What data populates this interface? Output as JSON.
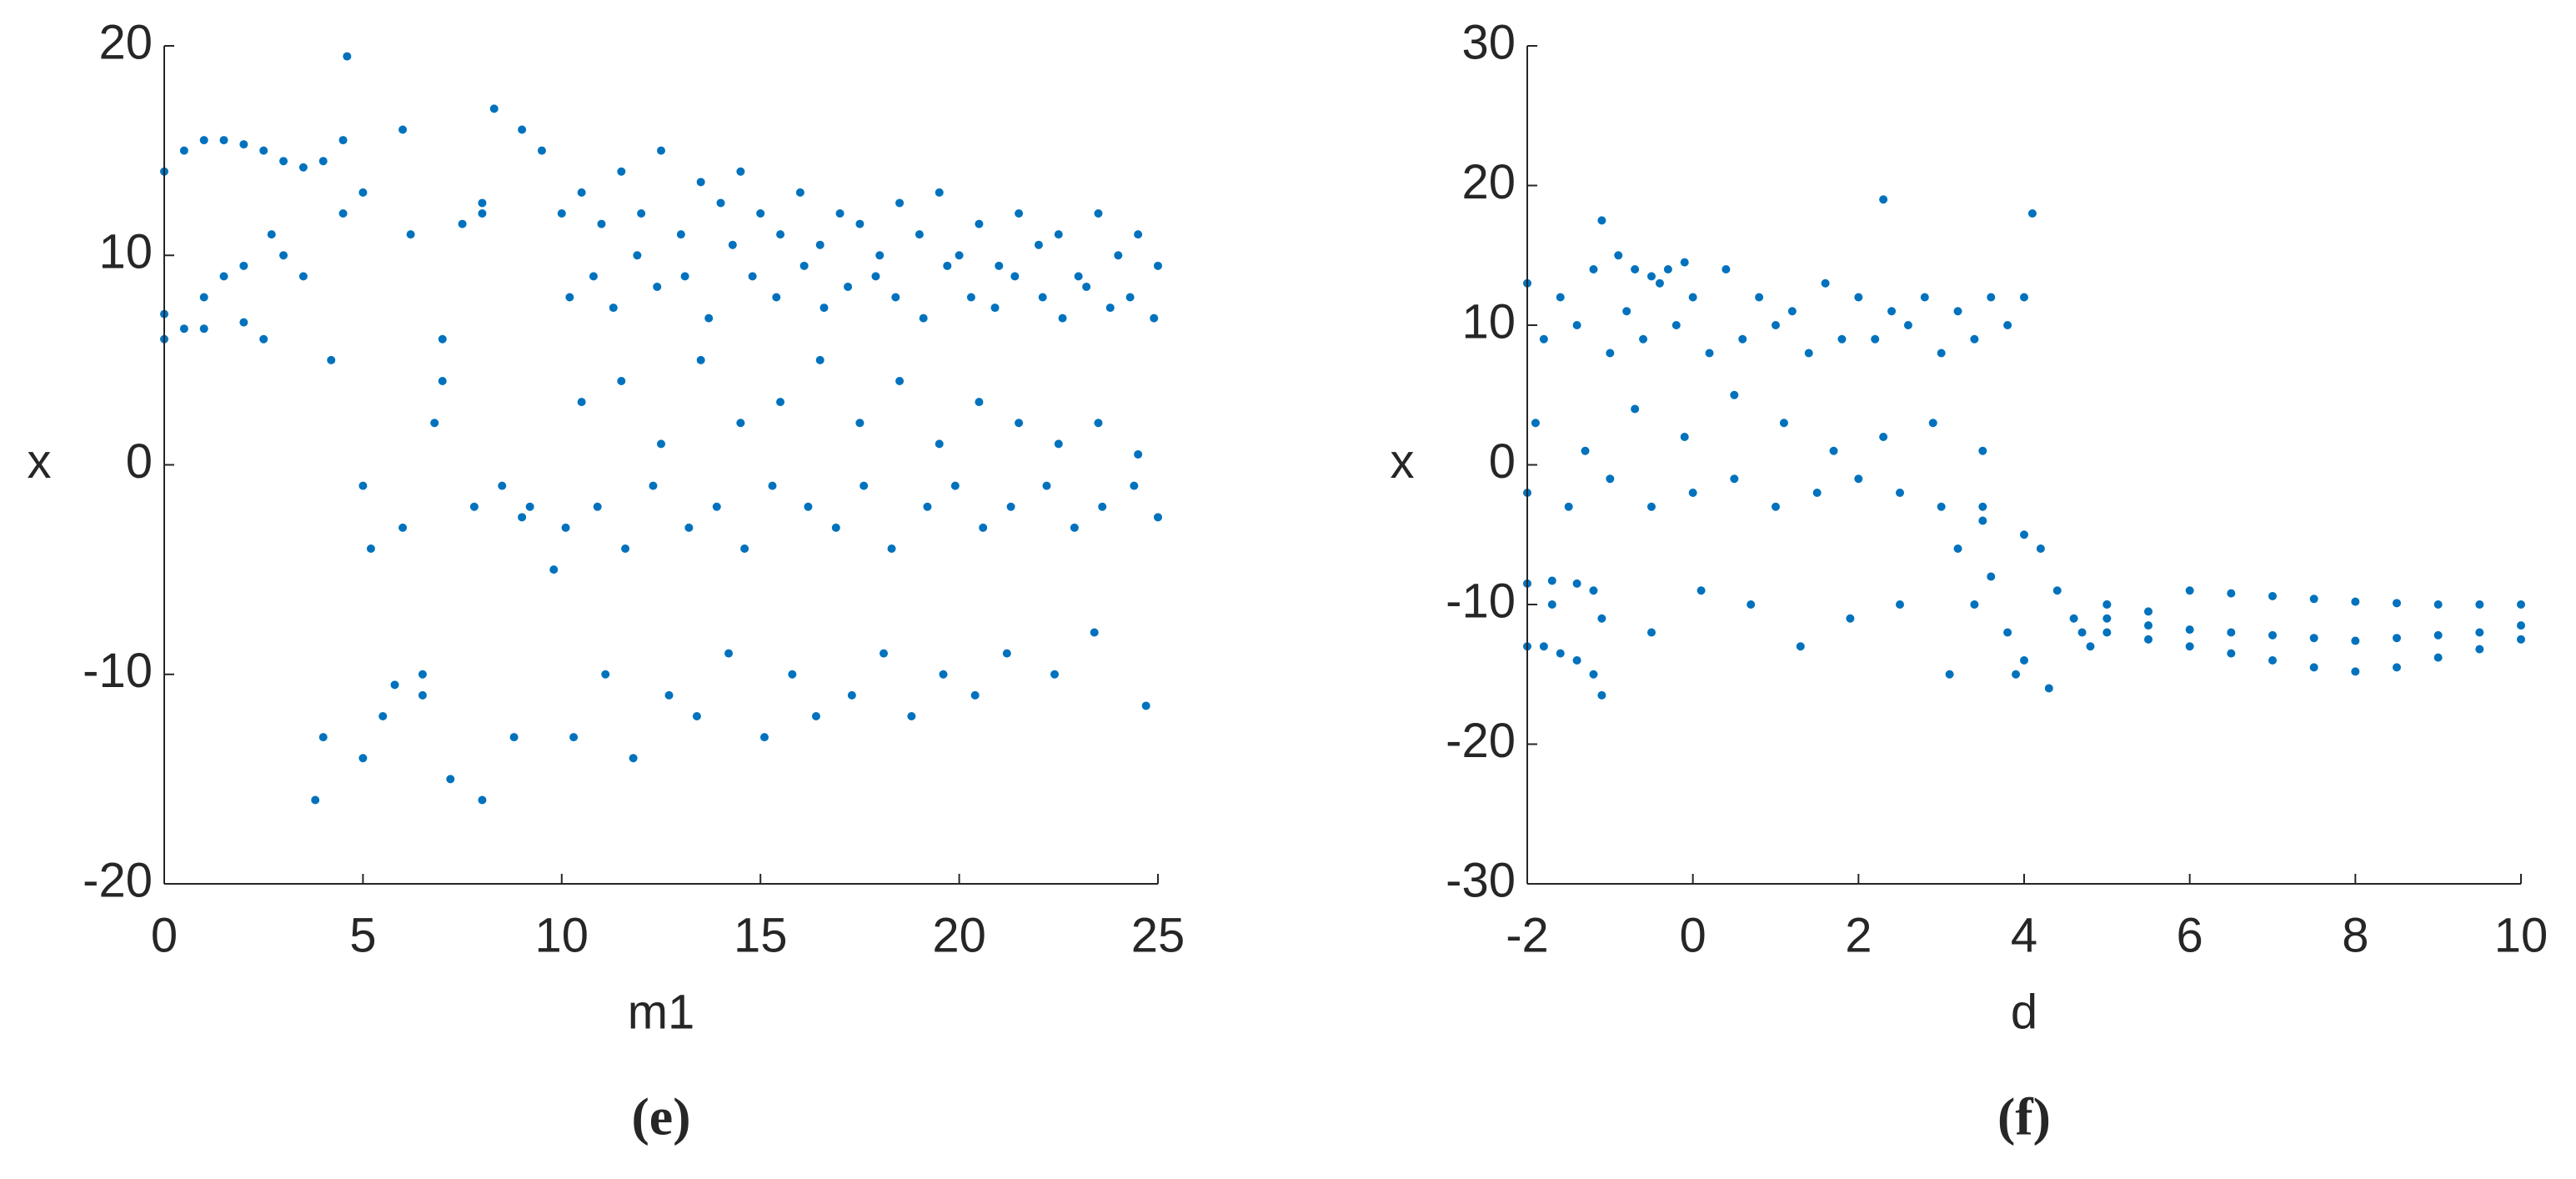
{
  "chart_data": [
    {
      "type": "scatter",
      "xlabel": "m1",
      "ylabel": "x",
      "caption": "(e)",
      "color": "#0072bd",
      "xlim": [
        0,
        25
      ],
      "ylim": [
        -20,
        20
      ],
      "xticks": [
        0,
        5,
        10,
        15,
        20,
        25
      ],
      "yticks": [
        -20,
        -10,
        0,
        10,
        20
      ],
      "x": [
        0,
        0.5,
        1,
        1.5,
        2,
        2.5,
        3,
        3.5,
        4,
        4.5,
        0,
        0.5,
        1,
        1.5,
        2,
        2.5,
        0,
        1,
        2,
        2.7,
        3,
        3.5,
        3.8,
        4,
        4.2,
        4.5,
        4.6,
        5,
        5.2,
        5.5,
        5.8,
        6,
        6.2,
        6.5,
        6.8,
        7,
        7.2,
        7.5,
        7.8,
        8,
        8.3,
        8.5,
        8.8,
        9,
        9.2,
        9.5,
        9.8,
        5,
        6,
        7,
        8,
        9,
        5,
        6.5,
        8,
        10,
        10.5,
        11,
        11.5,
        12,
        12.5,
        13,
        13.5,
        14,
        14.5,
        15,
        15.5,
        16,
        16.5,
        17,
        17.5,
        18,
        18.5,
        19,
        19.5,
        20,
        20.5,
        21,
        21.5,
        22,
        22.5,
        23,
        23.5,
        24,
        24.5,
        25,
        10.2,
        10.8,
        11.3,
        11.9,
        12.4,
        13.1,
        13.7,
        14.3,
        14.8,
        15.4,
        16.1,
        16.6,
        17.2,
        17.9,
        18.4,
        19.1,
        19.7,
        20.3,
        20.9,
        21.4,
        22.1,
        22.6,
        23.2,
        23.8,
        24.3,
        24.9,
        10.5,
        11.5,
        12.5,
        13.5,
        14.5,
        15.5,
        16.5,
        17.5,
        18.5,
        19.5,
        20.5,
        21.5,
        22.5,
        23.5,
        24.5,
        10.1,
        10.9,
        11.6,
        12.3,
        13.2,
        13.9,
        14.6,
        15.3,
        16.2,
        16.9,
        17.6,
        18.3,
        19.2,
        19.9,
        20.6,
        21.3,
        22.2,
        22.9,
        23.6,
        24.4,
        25,
        10.3,
        11.1,
        11.8,
        12.7,
        13.4,
        14.2,
        15.1,
        15.8,
        16.4,
        17.3,
        18.1,
        18.8,
        19.6,
        20.4,
        21.2,
        22.4,
        23.4,
        24.7
      ],
      "values": [
        14,
        15,
        15.5,
        15.5,
        15.3,
        15,
        14.5,
        14.2,
        14.5,
        15.5,
        6,
        6.5,
        8,
        9,
        9.5,
        6,
        7.2,
        6.5,
        6.8,
        11,
        10,
        9,
        -16,
        -13,
        5,
        12,
        19.5,
        13,
        -4,
        -12,
        -10.5,
        16,
        11,
        -10,
        2,
        6,
        -15,
        11.5,
        -2,
        12,
        17,
        -1,
        -13,
        16,
        -2,
        15,
        -5,
        -1,
        -3,
        4,
        12.5,
        -2.5,
        -14,
        -11,
        -16,
        12,
        13,
        11.5,
        14,
        12,
        15,
        11,
        13.5,
        12.5,
        14,
        12,
        11,
        13,
        10.5,
        12,
        11.5,
        10,
        12.5,
        11,
        13,
        10,
        11.5,
        9.5,
        12,
        10.5,
        11,
        9,
        12,
        10,
        11,
        9.5,
        8,
        9,
        7.5,
        10,
        8.5,
        9,
        7,
        10.5,
        9,
        8,
        9.5,
        7.5,
        8.5,
        9,
        8,
        7,
        9.5,
        8,
        7.5,
        9,
        8,
        7,
        8.5,
        7.5,
        8,
        7,
        3,
        4,
        1,
        5,
        2,
        3,
        5,
        2,
        4,
        1,
        3,
        2,
        1,
        2,
        0.5,
        -3,
        -2,
        -4,
        -1,
        -3,
        -2,
        -4,
        -1,
        -2,
        -3,
        -1,
        -4,
        -2,
        -1,
        -3,
        -2,
        -1,
        -3,
        -2,
        -1,
        -2.5,
        -13,
        -10,
        -14,
        -11,
        -12,
        -9,
        -13,
        -10,
        -12,
        -11,
        -9,
        -12,
        -10,
        -11,
        -9,
        -10,
        -8,
        -11.5
      ]
    },
    {
      "type": "scatter",
      "xlabel": "d",
      "ylabel": "x",
      "caption": "(f)",
      "color": "#0072bd",
      "xlim": [
        -2,
        10
      ],
      "ylim": [
        -30,
        30
      ],
      "xticks": [
        -2,
        0,
        2,
        4,
        6,
        8,
        10
      ],
      "yticks": [
        -30,
        -20,
        -10,
        0,
        10,
        20,
        30
      ],
      "x": [
        -1.1,
        -0.9,
        -0.7,
        -0.5,
        -0.3,
        -0.1,
        -2,
        -1.8,
        -1.6,
        -1.4,
        -1.2,
        -1.1,
        -2,
        -1.7,
        -1.4,
        -1.2,
        -2,
        -1.6,
        -1.2,
        -0.8,
        -0.4,
        0,
        0.4,
        0.8,
        1.2,
        1.6,
        2,
        2.4,
        2.8,
        3.2,
        3.6,
        4,
        -1.8,
        -1.4,
        -1,
        -0.6,
        -0.2,
        0.2,
        0.6,
        1,
        1.4,
        1.8,
        2.2,
        2.6,
        3,
        3.4,
        3.8,
        -1.9,
        -1.3,
        -0.7,
        -0.1,
        0.5,
        1.1,
        1.7,
        2.3,
        2.9,
        3.5,
        -2,
        -1.5,
        -1,
        -0.5,
        0,
        0.5,
        1,
        1.5,
        2,
        2.5,
        3,
        3.5,
        4,
        -1.7,
        -1.1,
        -0.5,
        0.1,
        0.7,
        1.3,
        1.9,
        2.5,
        3.1,
        3.2,
        3.4,
        3.6,
        3.8,
        4,
        4.2,
        4.4,
        4.6,
        4.8,
        5,
        3.5,
        3.9,
        4.3,
        4.7,
        2.3,
        4.1,
        5,
        5.5,
        6,
        6.5,
        7,
        7.5,
        8,
        8.5,
        9,
        9.5,
        10,
        5,
        5.5,
        6,
        6.5,
        7,
        7.5,
        8,
        8.5,
        9,
        9.5,
        10,
        5,
        5.5,
        6,
        6.5,
        7,
        7.5,
        8,
        8.5,
        9,
        9.5,
        10
      ],
      "values": [
        17.5,
        15,
        14,
        13.5,
        14,
        14.5,
        -13,
        -13,
        -13.5,
        -14,
        -15,
        -16.5,
        -8.5,
        -8.3,
        -8.5,
        -9,
        13,
        12,
        14,
        11,
        13,
        12,
        14,
        12,
        11,
        13,
        12,
        11,
        12,
        11,
        12,
        12,
        9,
        10,
        8,
        9,
        10,
        8,
        9,
        10,
        8,
        9,
        9,
        10,
        8,
        9,
        10,
        3,
        1,
        4,
        2,
        5,
        3,
        1,
        2,
        3,
        1,
        -2,
        -3,
        -1,
        -3,
        -2,
        -1,
        -3,
        -2,
        -1,
        -2,
        -3,
        -4,
        -5,
        -10,
        -11,
        -12,
        -9,
        -10,
        -13,
        -11,
        -10,
        -15,
        -6,
        -10,
        -8,
        -12,
        -14,
        -6,
        -9,
        -11,
        -13,
        -10,
        -3,
        -15,
        -16,
        -12,
        19,
        18,
        -10,
        -10.5,
        -9,
        -9.2,
        -9.4,
        -9.6,
        -9.8,
        -9.9,
        -10,
        -10,
        -10,
        -12,
        -12.5,
        -13,
        -13.5,
        -14,
        -14.5,
        -14.8,
        -14.5,
        -13.8,
        -13.2,
        -12.5,
        -11,
        -11.5,
        -11.8,
        -12,
        -12.2,
        -12.4,
        -12.6,
        -12.4,
        -12.2,
        -12,
        -11.5
      ]
    }
  ]
}
